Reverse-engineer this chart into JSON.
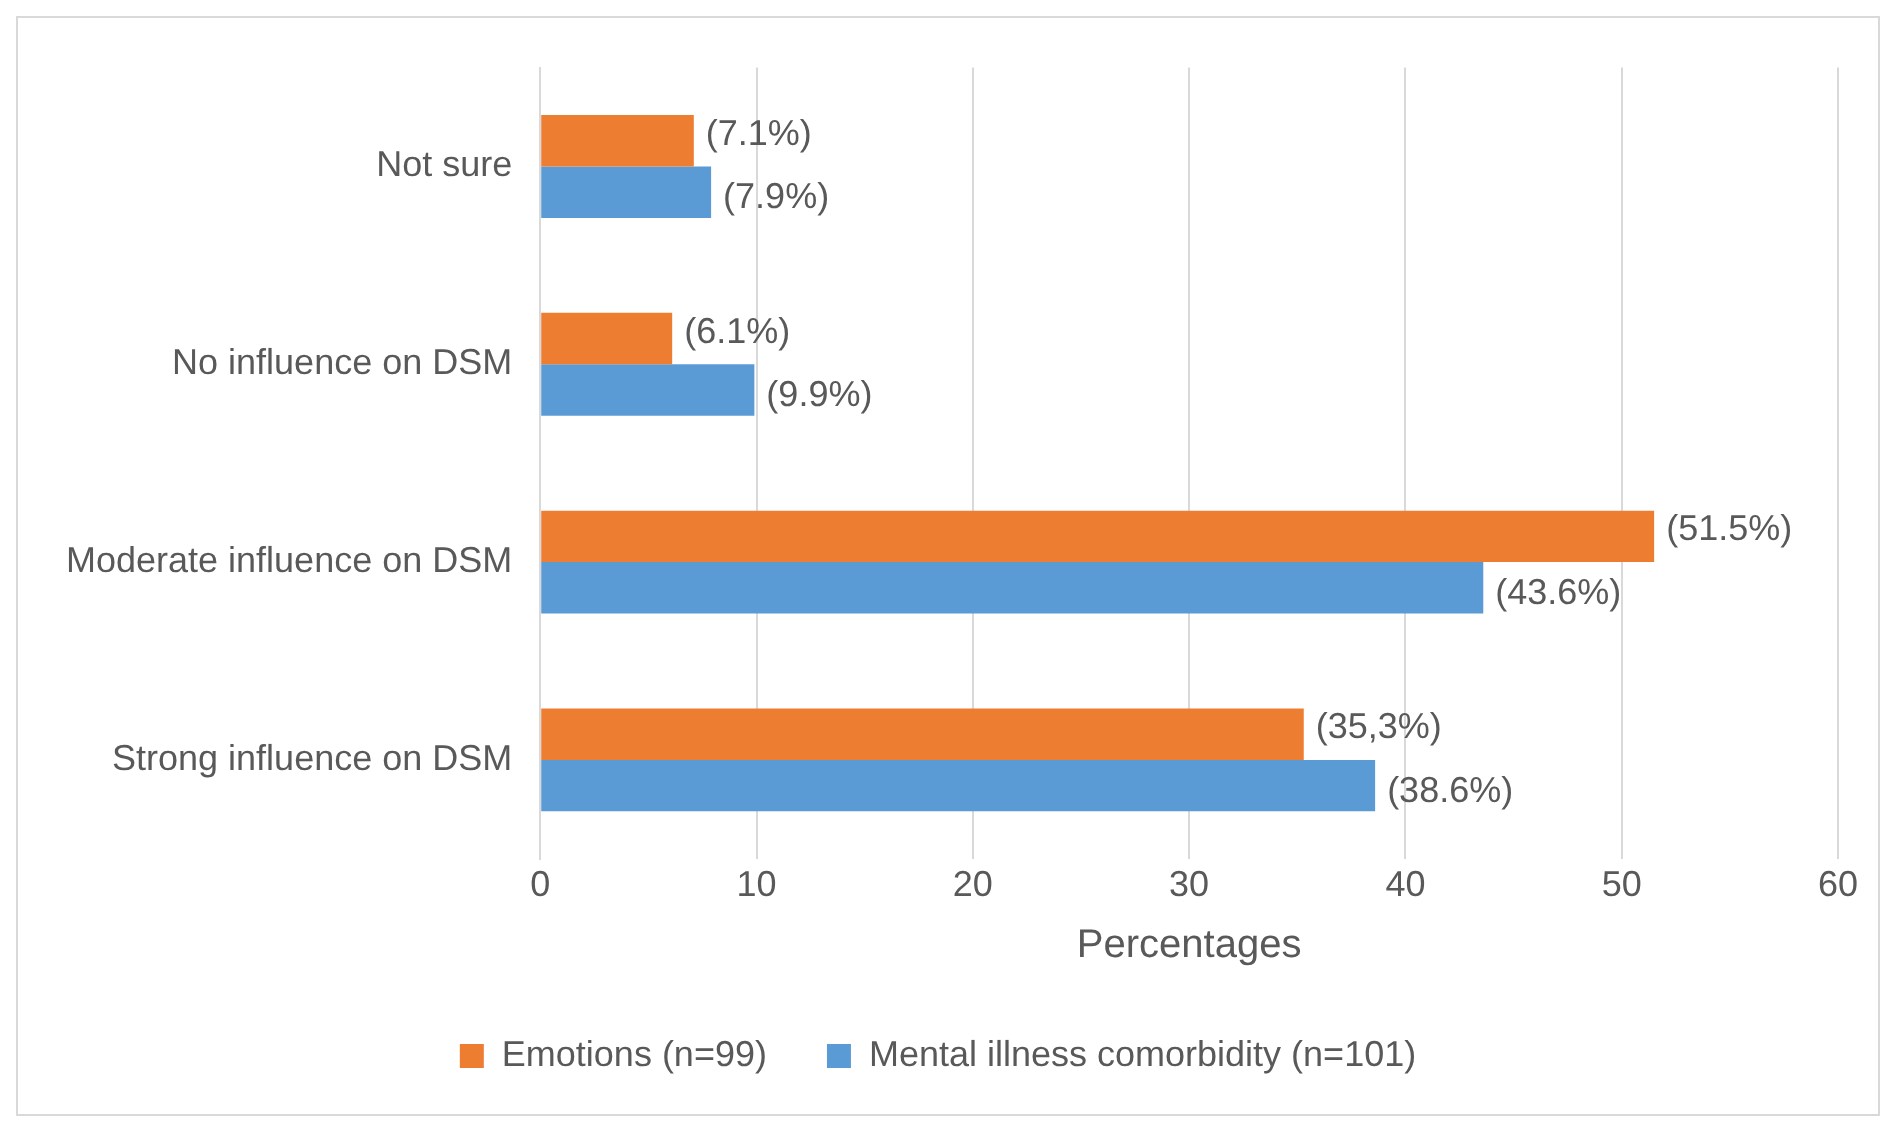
{
  "chart_data": {
    "type": "bar",
    "orientation": "horizontal",
    "xlabel": "Percentages",
    "categories": [
      "Not sure",
      "No influence on DSM",
      "Moderate influence on DSM",
      "Strong influence on DSM"
    ],
    "series": [
      {
        "name": "Emotions (n=99)",
        "color": "#ed7d31",
        "values": [
          7.1,
          6.1,
          51.5,
          35.3
        ],
        "value_labels": [
          "(7.1%)",
          "(6.1%)",
          "(51.5%)",
          "(35,3%)"
        ]
      },
      {
        "name": "Mental illness comorbidity (n=101)",
        "color": "#5b9bd5",
        "values": [
          7.9,
          9.9,
          43.6,
          38.6
        ],
        "value_labels": [
          "(7.9%)",
          "(9.9%)",
          "(43.6%)",
          "(38.6%)"
        ]
      }
    ],
    "xlim": [
      0,
      60
    ],
    "xticks": [
      0,
      10,
      20,
      30,
      40,
      50,
      60
    ],
    "grid": "x",
    "legend": "bottom"
  }
}
